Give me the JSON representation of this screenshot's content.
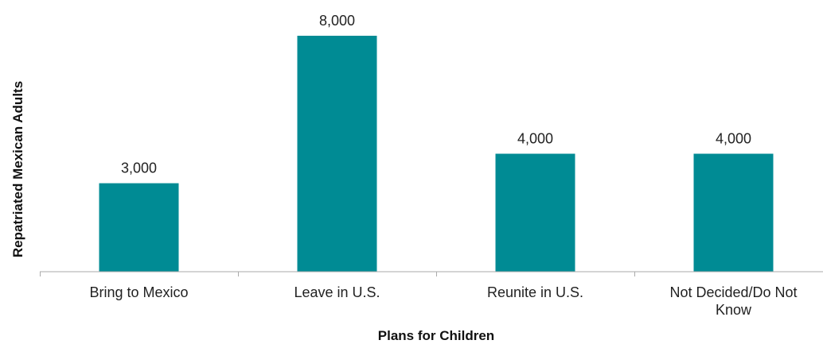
{
  "chart_data": {
    "type": "bar",
    "categories": [
      "Bring to Mexico",
      "Leave in U.S.",
      "Reunite in U.S.",
      "Not Decided/Do Not Know"
    ],
    "category_lines": [
      [
        "Bring to Mexico"
      ],
      [
        "Leave in U.S."
      ],
      [
        "Reunite in U.S."
      ],
      [
        "Not Decided/Do Not",
        "Know"
      ]
    ],
    "values": [
      3000,
      8000,
      4000,
      4000
    ],
    "value_labels": [
      "3,000",
      "8,000",
      "4,000",
      "4,000"
    ],
    "title": "",
    "xlabel": "Plans for Children",
    "ylabel": "Repatriated Mexican Adults",
    "ylim": [
      0,
      8000
    ],
    "grid": false,
    "legend": "none",
    "bar_color": "#008b94",
    "axis_color": "#aaaaaa"
  }
}
